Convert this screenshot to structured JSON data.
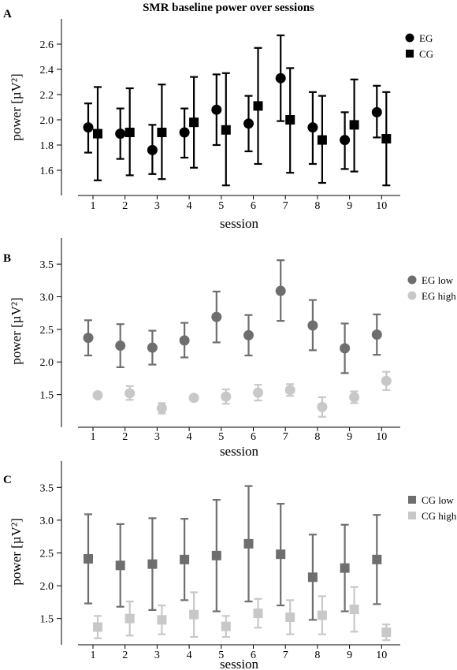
{
  "figure_title": "SMR baseline power over sessions",
  "chart_data": [
    {
      "panel": "A",
      "type": "scatter",
      "title": "SMR baseline power over sessions",
      "xlabel": "session",
      "ylabel": "power [µV²]",
      "categories": [
        "1",
        "2",
        "3",
        "4",
        "5",
        "6",
        "7",
        "8",
        "9",
        "10"
      ],
      "ylim": [
        1.4,
        2.8
      ],
      "yticks": [
        1.6,
        1.8,
        2.0,
        2.2,
        2.4,
        2.6
      ],
      "ytick_labels": [
        "1.6",
        "1.8",
        "2.0",
        "2.2",
        "2.4",
        "2.6"
      ],
      "legend_position": "top-right",
      "series": [
        {
          "name": "EG",
          "marker": "circle",
          "color": "#000000",
          "values": [
            1.94,
            1.89,
            1.76,
            1.9,
            2.08,
            1.97,
            2.33,
            1.94,
            1.84,
            2.06
          ],
          "err_low": [
            1.74,
            1.69,
            1.57,
            1.7,
            1.8,
            1.75,
            1.99,
            1.65,
            1.61,
            1.86
          ],
          "err_high": [
            2.13,
            2.09,
            1.96,
            2.09,
            2.36,
            2.19,
            2.67,
            2.22,
            2.06,
            2.27
          ]
        },
        {
          "name": "CG",
          "marker": "square",
          "color": "#000000",
          "values": [
            1.89,
            1.9,
            1.9,
            1.98,
            1.92,
            2.11,
            2.0,
            1.84,
            1.96,
            1.85
          ],
          "err_low": [
            1.52,
            1.56,
            1.53,
            1.62,
            1.48,
            1.65,
            1.58,
            1.5,
            1.59,
            1.48
          ],
          "err_high": [
            2.26,
            2.25,
            2.28,
            2.34,
            2.37,
            2.57,
            2.41,
            2.19,
            2.32,
            2.22
          ]
        }
      ]
    },
    {
      "panel": "B",
      "type": "scatter",
      "xlabel": "session",
      "ylabel": "power [µV²]",
      "categories": [
        "1",
        "2",
        "3",
        "4",
        "5",
        "6",
        "7",
        "8",
        "9",
        "10"
      ],
      "ylim": [
        1.0,
        3.9
      ],
      "yticks": [
        1.5,
        2.0,
        2.5,
        3.0,
        3.5
      ],
      "ytick_labels": [
        "1.5",
        "2.0",
        "2.5",
        "3.0",
        "3.5"
      ],
      "legend_position": "top-right",
      "series": [
        {
          "name": "EG low",
          "marker": "circle",
          "color": "#6e6e6e",
          "values": [
            2.37,
            2.25,
            2.22,
            2.33,
            2.69,
            2.41,
            3.09,
            2.56,
            2.21,
            2.42
          ],
          "err_low": [
            2.1,
            1.92,
            1.96,
            2.07,
            2.3,
            2.1,
            2.63,
            2.18,
            1.83,
            2.11
          ],
          "err_high": [
            2.64,
            2.58,
            2.48,
            2.6,
            3.08,
            2.72,
            3.56,
            2.95,
            2.59,
            2.73
          ]
        },
        {
          "name": "EG high",
          "marker": "circle",
          "color": "#c8c8c8",
          "values": [
            1.49,
            1.52,
            1.29,
            1.45,
            1.47,
            1.53,
            1.57,
            1.31,
            1.46,
            1.71
          ],
          "err_low": [
            1.45,
            1.42,
            1.21,
            1.42,
            1.36,
            1.41,
            1.48,
            1.16,
            1.37,
            1.57
          ],
          "err_high": [
            1.53,
            1.63,
            1.37,
            1.48,
            1.58,
            1.65,
            1.66,
            1.46,
            1.55,
            1.85
          ]
        }
      ]
    },
    {
      "panel": "C",
      "type": "scatter",
      "xlabel": "session",
      "ylabel": "power [µV²]",
      "categories": [
        "1",
        "2",
        "3",
        "4",
        "5",
        "6",
        "7",
        "8",
        "9",
        "10"
      ],
      "ylim": [
        1.1,
        3.9
      ],
      "yticks": [
        1.5,
        2.0,
        2.5,
        3.0,
        3.5
      ],
      "ytick_labels": [
        "1.5",
        "2.0",
        "2.5",
        "3.0",
        "3.5"
      ],
      "legend_position": "top-right",
      "series": [
        {
          "name": "CG low",
          "marker": "square",
          "color": "#6e6e6e",
          "values": [
            2.41,
            2.31,
            2.33,
            2.4,
            2.46,
            2.64,
            2.48,
            2.13,
            2.27,
            2.4
          ],
          "err_low": [
            1.73,
            1.68,
            1.63,
            1.78,
            1.61,
            1.76,
            1.7,
            1.48,
            1.61,
            1.72
          ],
          "err_high": [
            3.09,
            2.94,
            3.03,
            3.02,
            3.31,
            3.52,
            3.25,
            2.78,
            2.93,
            3.08
          ]
        },
        {
          "name": "CG high",
          "marker": "square",
          "color": "#c8c8c8",
          "values": [
            1.37,
            1.5,
            1.48,
            1.56,
            1.38,
            1.58,
            1.52,
            1.55,
            1.64,
            1.29
          ],
          "err_low": [
            1.2,
            1.24,
            1.26,
            1.22,
            1.22,
            1.36,
            1.26,
            1.26,
            1.3,
            1.17
          ],
          "err_high": [
            1.54,
            1.76,
            1.7,
            1.9,
            1.54,
            1.8,
            1.78,
            1.84,
            1.98,
            1.41
          ]
        }
      ]
    }
  ]
}
